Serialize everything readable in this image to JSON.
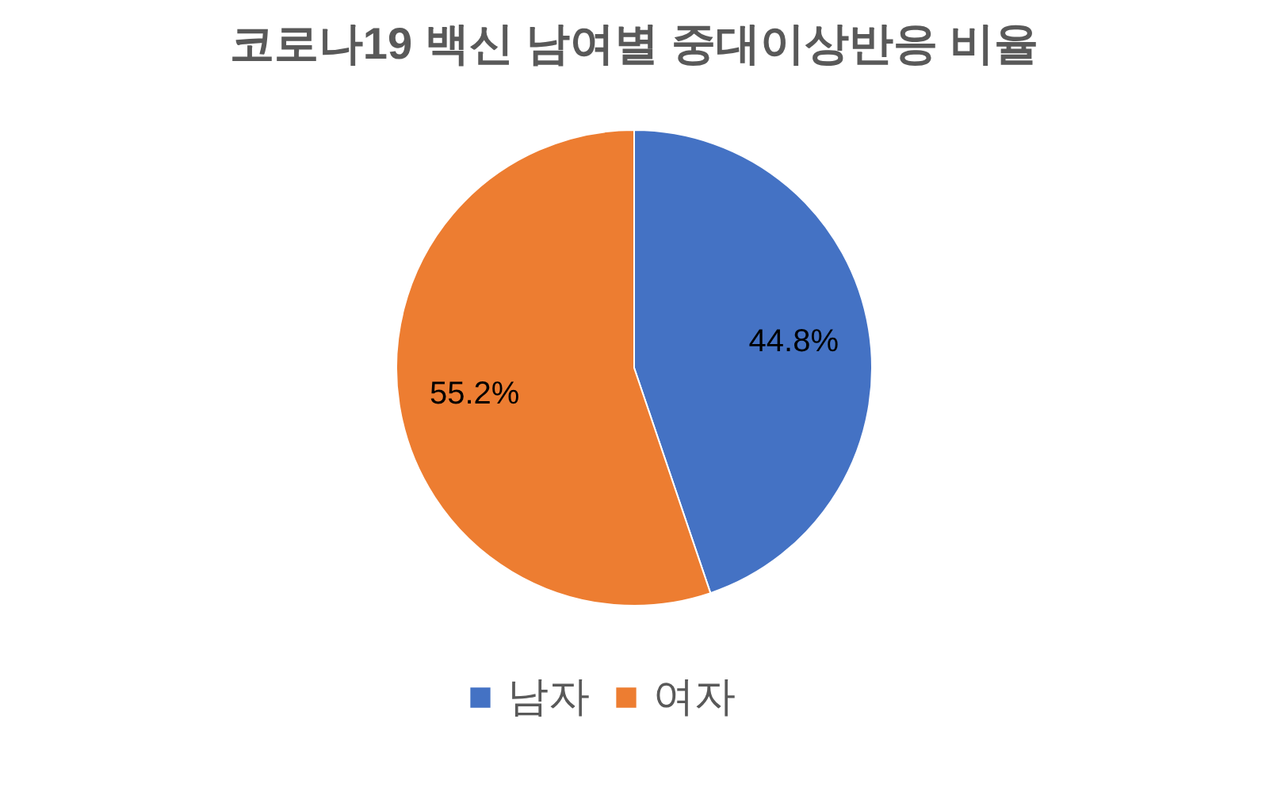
{
  "chart_data": {
    "type": "pie",
    "title": "코로나19 백신 남여별 중대이상반응 비율",
    "categories": [
      "남자",
      "여자"
    ],
    "values": [
      44.8,
      55.2
    ],
    "colors": [
      "#4472c4",
      "#ed7d31"
    ],
    "value_labels": [
      "44.8%",
      "55.2%"
    ],
    "legend": "bottom"
  }
}
